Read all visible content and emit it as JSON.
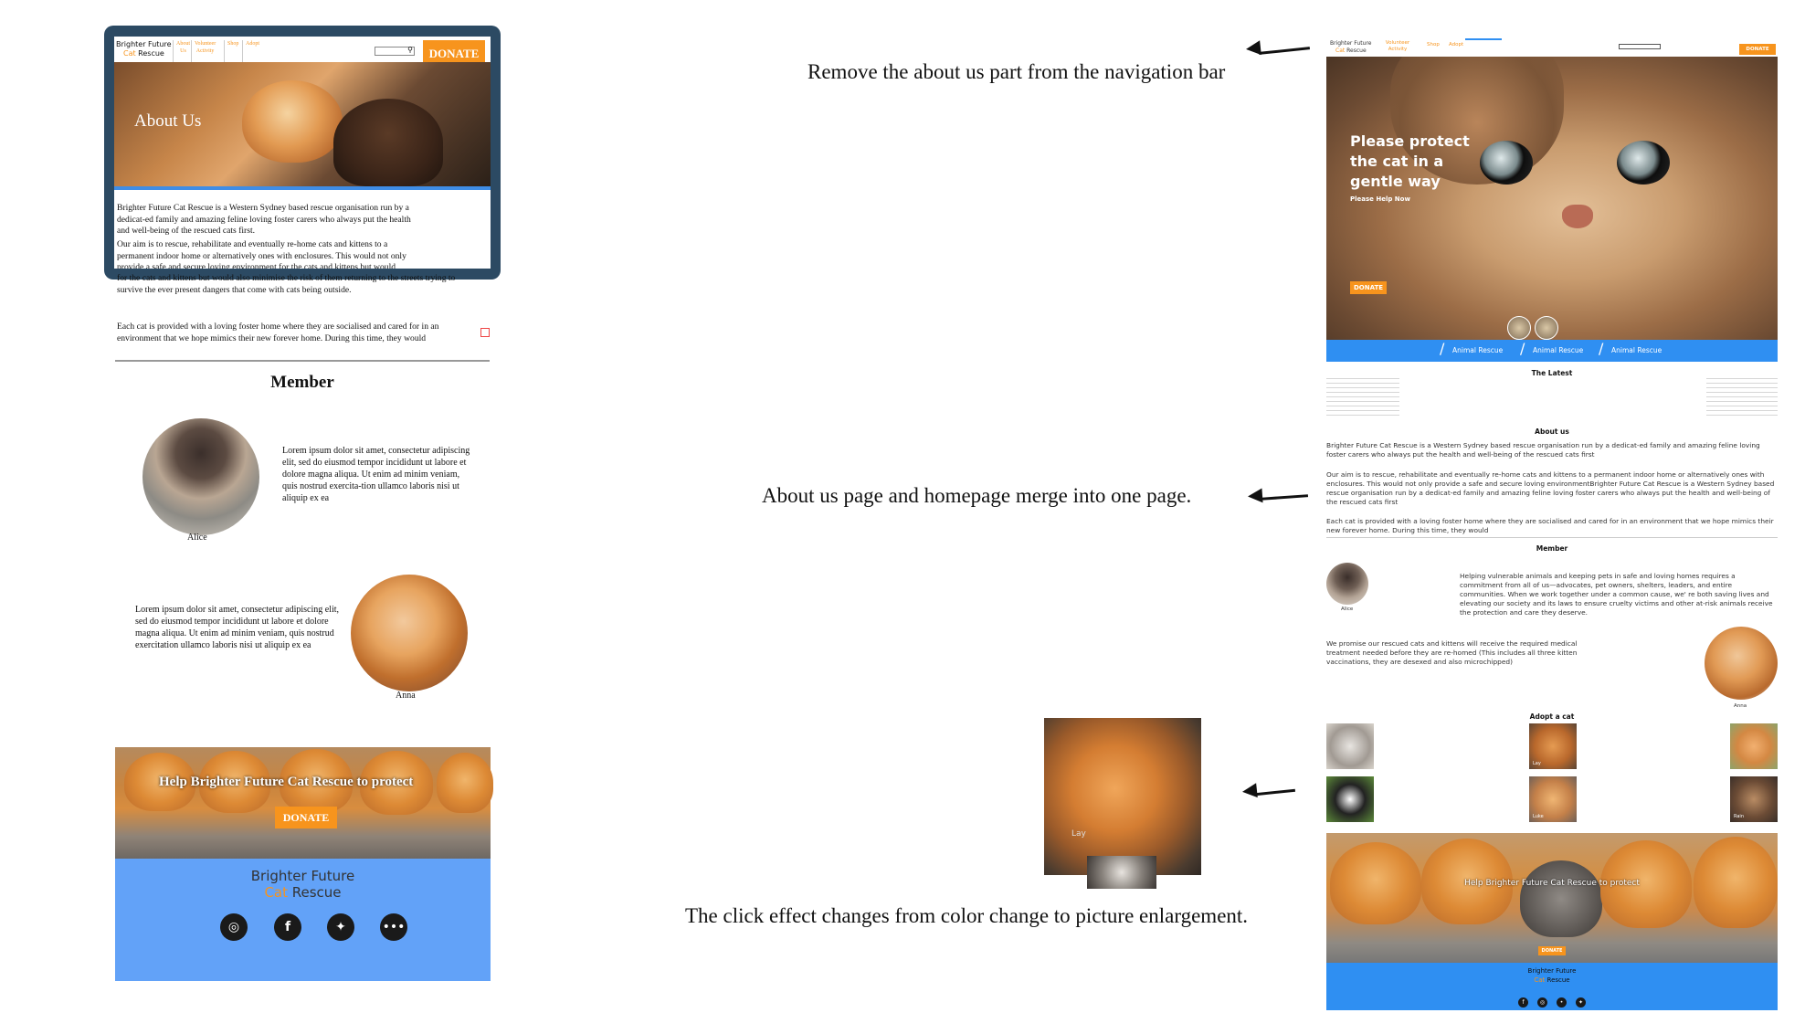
{
  "left": {
    "nav": {
      "logo_line1": "Brighter Future",
      "logo_cat": "Cat",
      "logo_rescue": "Rescue",
      "items": [
        {
          "line1": "About",
          "line2": "Us"
        },
        {
          "line1": "Volunteer",
          "line2": "Activity"
        },
        {
          "line1": "Shop",
          "line2": ""
        },
        {
          "line1": "Adopt",
          "line2": ""
        }
      ],
      "donate": "DONATE"
    },
    "hero_title": "About Us",
    "paragraphs": [
      "Brighter Future Cat Rescue is a Western Sydney based rescue organisation run by a dedicat-ed family and amazing feline loving foster carers who always put the health and well-being of the rescued cats first.",
      "Our aim is to rescue, rehabilitate and eventually re-home cats and kittens to a permanent indoor home or alternatively ones with enclosures. This would not only provide a safe and secure loving environment for the cats and kittens but would also minimise the risk of them returning to the streets trying to survive the ever present dangers that come with cats being outside.",
      "Each cat is provided with a loving foster home where they are socialised and cared for in an environment that we hope mimics their new forever home. During this time, they would"
    ],
    "member_title": "Member",
    "members": [
      {
        "name": "Alice",
        "text": "Lorem ipsum dolor sit amet, consectetur adipiscing elit, sed do eiusmod tempor incididunt ut labore et dolore magna aliqua. Ut enim ad minim veniam, quis nostrud exercita-tion ullamco laboris nisi ut aliquip ex ea"
      },
      {
        "name": "Anna",
        "text": "Lorem ipsum dolor sit amet, consectetur adipiscing elit, sed do eiusmod tempor incididunt ut labore et dolore magna aliqua. Ut enim ad minim veniam, quis nostrud exercitation ullamco laboris nisi ut aliquip ex ea"
      }
    ],
    "banner_text": "Help Brighter Future Cat Rescue to protect",
    "banner_donate": "DONATE",
    "footer": {
      "line1": "Brighter Future",
      "cat": "Cat",
      "rescue": "Rescue"
    },
    "social_icons": [
      "instagram-icon",
      "facebook-icon",
      "twitter-icon",
      "more-icon"
    ]
  },
  "annotations": [
    "Remove the about us part from the navigation bar",
    "About us page and homepage merge into one page.",
    "The click effect changes from color change to picture enlargement."
  ],
  "middle": {
    "cat_caption": "Lay"
  },
  "right": {
    "nav": {
      "logo_line1": "Brighter Future",
      "logo_cat": "Cat",
      "logo_rescue": "Rescue",
      "items": [
        "Volunteer Activity",
        "Shop",
        "Adopt"
      ],
      "donate": "DONATE"
    },
    "hero": {
      "line1": "Please protect",
      "line2": "the cat in a",
      "line3": "gentle way",
      "sub": "Please Help Now",
      "donate": "DONATE"
    },
    "tags": [
      "Animal Rescue",
      "Animal Rescue",
      "Animal Rescue"
    ],
    "latest_title": "The Latest",
    "about_title": "About us",
    "about_paragraphs": [
      "Brighter Future Cat Rescue is a Western Sydney based rescue organisation run by a dedicat-ed family and amazing feline loving foster carers who always put the health and well-being of the rescued cats first",
      "Our aim is to rescue, rehabilitate and eventually re-home cats and kittens to a permanent indoor home or alternatively ones with enclosures. This would not only provide a safe and secure loving environmentBrighter Future Cat Rescue is a Western Sydney based rescue organisation run by a dedicat-ed family and amazing feline loving foster carers who always put the health and well-being of the rescued cats first",
      "Each cat is provided with a loving foster home where they are socialised and cared for in an environment that we hope mimics their new forever home. During this time, they would"
    ],
    "member_title": "Member",
    "members": [
      {
        "name": "Alice",
        "text": "Helping vulnerable animals and keeping pets in safe and loving homes requires a commitment from all of us—advocates, pet owners, shelters, leaders, and entire communities. When we work together under a common cause, we' re both saving lives and elevating our society and its laws to ensure cruelty victims and other at-risk animals receive the protection and care they deserve."
      },
      {
        "name": "Anna",
        "text": "We promise our rescued cats and kittens will receive the required medical treatment needed before they are re-homed (This includes all three kitten vaccinations, they are desexed and also microchipped)"
      }
    ],
    "adopt_title": "Adopt a cat",
    "adopt_captions": [
      "",
      "Lay",
      "",
      "",
      "Luke",
      "Rain"
    ],
    "banner_text": "Help Brighter Future Cat Rescue to protect",
    "banner_donate": "DONATE",
    "footer": {
      "line1": "Brighter Future",
      "cat": "Cat",
      "rescue": "Rescue"
    },
    "footer_icons": [
      "facebook-icon",
      "instagram-icon",
      "more-icon",
      "twitter-icon"
    ]
  },
  "colors": {
    "accent": "#f7941d",
    "blue": "#2f8ff2",
    "frame": "#2c4a63",
    "light_blue": "#62a2f8"
  }
}
